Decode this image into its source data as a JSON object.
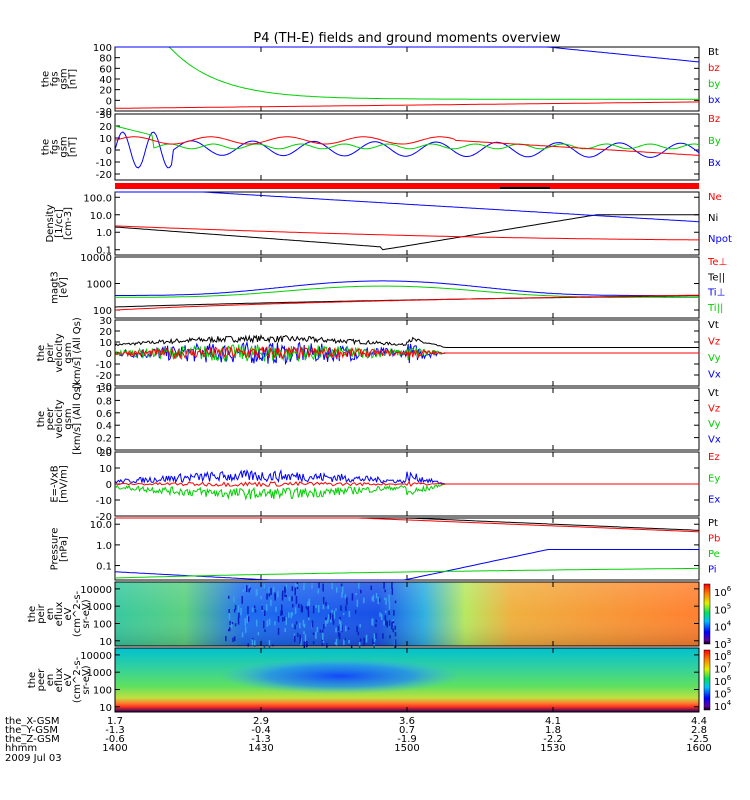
{
  "title": "P4 (TH-E) fields and ground moments overview",
  "colors": {
    "black": "#000000",
    "red": "#ff0000",
    "green": "#00d000",
    "blue": "#0000ff",
    "bar_black": "#000000"
  },
  "chart_data": [
    {
      "type": "line",
      "id": "fgs-gsm",
      "ylabel_lines": [
        "the",
        "fgs",
        "gsm",
        "[nT]"
      ],
      "ylim": [
        -20,
        100
      ],
      "yticks": [
        "-20",
        "0",
        "20",
        "40",
        "60",
        "80",
        "100"
      ],
      "legend": [
        "Bt",
        "bz",
        "by",
        "bx"
      ],
      "legend_colors": [
        "#000000",
        "#ff0000",
        "#00d000",
        "#0000ff"
      ]
    },
    {
      "type": "line",
      "id": "fgs-gsm-zoom",
      "ylabel_lines": [
        "the",
        "fgs",
        "gsm",
        "[nT]"
      ],
      "ylim": [
        -25,
        30
      ],
      "yticks": [
        "-20",
        "-10",
        "0",
        "10",
        "20",
        "30"
      ],
      "legend": [
        "Bz",
        "By",
        "Bx"
      ],
      "legend_colors": [
        "#ff0000",
        "#00d000",
        "#0000ff"
      ]
    },
    {
      "type": "line",
      "id": "density",
      "ylabel_lines": [
        "Density",
        "[1/cc]",
        "[cm-3]"
      ],
      "scale": "log",
      "ylim": [
        0.05,
        200
      ],
      "yticks": [
        "0.1",
        "1.0",
        "10.0",
        "100.0"
      ],
      "legend": [
        "Ne",
        "Ni",
        "Npot"
      ],
      "legend_colors": [
        "#ff0000",
        "#000000",
        "#0000ff"
      ]
    },
    {
      "type": "line",
      "id": "temperature",
      "ylabel_lines": [
        "magt3",
        "[eV]"
      ],
      "scale": "log",
      "ylim": [
        50,
        10000
      ],
      "yticks": [
        "100",
        "1000",
        "10000"
      ],
      "legend": [
        "Te⊥",
        "Te||",
        "Ti⊥",
        "Ti||"
      ],
      "legend_colors": [
        "#ff0000",
        "#000000",
        "#0000ff",
        "#00d000"
      ]
    },
    {
      "type": "line",
      "id": "peir-velocity",
      "ylabel_lines": [
        "the",
        "peir",
        "velocity",
        "gsm",
        "[km/s] (All Qs)"
      ],
      "ylim": [
        -30,
        30
      ],
      "yticks": [
        "-30",
        "-20",
        "-10",
        "0",
        "10",
        "20",
        "30"
      ],
      "legend": [
        "Vt",
        "Vz",
        "Vy",
        "Vx"
      ],
      "legend_colors": [
        "#000000",
        "#ff0000",
        "#00d000",
        "#0000ff"
      ]
    },
    {
      "type": "line",
      "id": "peer-velocity",
      "ylabel_lines": [
        "the",
        "peer",
        "velocity",
        "gsm",
        "[km/s] (All Qs)"
      ],
      "ylim": [
        0,
        1
      ],
      "yticks": [
        "0.0",
        "0.2",
        "0.4",
        "0.6",
        "0.8",
        "1.0"
      ],
      "legend": [
        "Vt",
        "Vz",
        "Vy",
        "Vx"
      ],
      "legend_colors": [
        "#000000",
        "#ff0000",
        "#00d000",
        "#0000ff"
      ]
    },
    {
      "type": "line",
      "id": "efield",
      "ylabel_lines": [
        "E=-VxB",
        "[mV/m]"
      ],
      "ylim": [
        -20,
        20
      ],
      "yticks": [
        "-20",
        "-10",
        "0",
        "10",
        "20"
      ],
      "legend": [
        "Ez",
        "Ey",
        "Ex"
      ],
      "legend_colors": [
        "#ff0000",
        "#00d000",
        "#0000ff"
      ]
    },
    {
      "type": "line",
      "id": "pressure",
      "ylabel_lines": [
        "Pressure",
        "[nPa]"
      ],
      "scale": "log",
      "ylim": [
        0.02,
        20
      ],
      "yticks": [
        "0.1",
        "1.0",
        "10.0"
      ],
      "legend": [
        "Pt",
        "Pb",
        "Pe",
        "Pi"
      ],
      "legend_colors": [
        "#000000",
        "#ff0000",
        "#00d000",
        "#0000ff"
      ]
    },
    {
      "type": "heatmap",
      "id": "peir-en-eflux",
      "ylabel_lines": [
        "the",
        "peir",
        "en",
        "eflux",
        "eV",
        "(cm^2-s-",
        "sr-eV)"
      ],
      "scale": "log",
      "ylim": [
        5,
        25000
      ],
      "yticks": [
        "10",
        "100",
        "1000",
        "10000"
      ],
      "colorbar_ticks": [
        "10^3",
        "10^4",
        "10^5",
        "10^6"
      ],
      "colorbar_range": [
        1000,
        3000000
      ]
    },
    {
      "type": "heatmap",
      "id": "peer-en-eflux",
      "ylabel_lines": [
        "the",
        "peer",
        "en",
        "eflux",
        "eV",
        "(cm^2-s-",
        "sr-eV)"
      ],
      "scale": "log",
      "ylim": [
        5,
        25000
      ],
      "yticks": [
        "10",
        "100",
        "1000",
        "10000"
      ],
      "colorbar_ticks": [
        "10^4",
        "10^5",
        "10^6",
        "10^7",
        "10^8"
      ],
      "colorbar_range": [
        5000,
        300000000
      ]
    }
  ],
  "xaxis": {
    "row_labels": [
      "the_X-GSM",
      "the_Y-GSM",
      "the_Z-GSM",
      "hhmm",
      "2009 Jul 03"
    ],
    "ticks": [
      {
        "t": 0,
        "x_gsm": "1.7",
        "y_gsm": "-1.3",
        "z_gsm": "-0.6",
        "hhmm": "1400"
      },
      {
        "t": 30,
        "x_gsm": "2.9",
        "y_gsm": "-0.4",
        "z_gsm": "-1.3",
        "hhmm": "1430"
      },
      {
        "t": 60,
        "x_gsm": "3.6",
        "y_gsm": "0.7",
        "z_gsm": "-1.9",
        "hhmm": "1500"
      },
      {
        "t": 90,
        "x_gsm": "4.1",
        "y_gsm": "1.8",
        "z_gsm": "-2.2",
        "hhmm": "1530"
      },
      {
        "t": 120,
        "x_gsm": "4.4",
        "y_gsm": "2.8",
        "z_gsm": "-2.5",
        "hhmm": "1600"
      }
    ]
  }
}
